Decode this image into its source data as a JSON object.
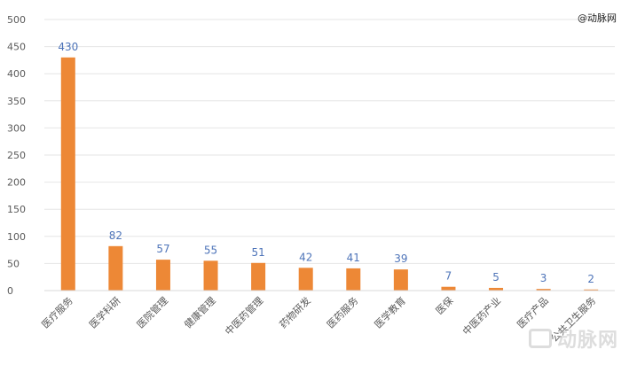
{
  "source_label": "@动脉网",
  "watermark": "动脉网",
  "colors": {
    "bar": "#ED8836",
    "value_label": "#4E74B9",
    "axis_text": "#595959",
    "grid": "#E6E6E6"
  },
  "chart_data": {
    "type": "bar",
    "title": "",
    "xlabel": "",
    "ylabel": "",
    "ylim": [
      0,
      500
    ],
    "yticks": [
      0,
      50,
      100,
      150,
      200,
      250,
      300,
      350,
      400,
      450,
      500
    ],
    "grid": true,
    "categories": [
      "医疗服务",
      "医学科研",
      "医院管理",
      "健康管理",
      "中医药管理",
      "药物研发",
      "医药服务",
      "医学教育",
      "医保",
      "中医药产业",
      "医疗产品",
      "公共卫生服务"
    ],
    "values": [
      430,
      82,
      57,
      55,
      51,
      42,
      41,
      39,
      7,
      5,
      3,
      2
    ]
  }
}
